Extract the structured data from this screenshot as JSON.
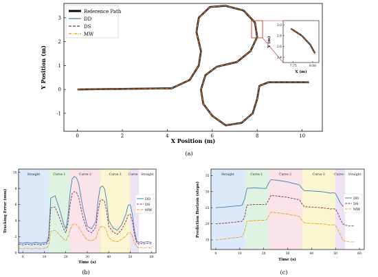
{
  "captions": {
    "a": "(a)",
    "b": "(b)",
    "c": "(c)"
  },
  "colors": {
    "reference": "#000000",
    "DD": "#3a7fb5",
    "DS": "#8b2252",
    "MW": "#f28c00"
  },
  "chart_data": [
    {
      "id": "a",
      "type": "line",
      "xlabel": "X Position (m)",
      "ylabel": "Y Position (m)",
      "xlim": [
        -0.6,
        10.9
      ],
      "ylim": [
        -1.75,
        3.6
      ],
      "xticks": [
        0,
        2,
        4,
        6,
        8,
        10
      ],
      "yticks": [
        -1,
        0,
        1,
        2,
        3
      ],
      "legend_position": "top-left",
      "series": [
        {
          "name": "Reference Path",
          "style": "solid-thick"
        },
        {
          "name": "DD",
          "style": "solid"
        },
        {
          "name": "DS",
          "style": "dashed"
        },
        {
          "name": "MW",
          "style": "dashdot"
        }
      ],
      "path": [
        [
          0,
          0
        ],
        [
          4.2,
          0.05
        ],
        [
          5.0,
          0.4
        ],
        [
          5.4,
          1.0
        ],
        [
          5.5,
          1.6
        ],
        [
          5.3,
          2.4
        ],
        [
          5.4,
          3.0
        ],
        [
          5.9,
          3.45
        ],
        [
          6.6,
          3.5
        ],
        [
          7.4,
          3.3
        ],
        [
          7.9,
          2.8
        ],
        [
          8.0,
          2.2
        ],
        [
          7.7,
          1.6
        ],
        [
          7.1,
          1.15
        ],
        [
          6.2,
          0.95
        ],
        [
          5.7,
          0.6
        ],
        [
          5.5,
          0.0
        ],
        [
          5.6,
          -0.6
        ],
        [
          6.0,
          -1.1
        ],
        [
          6.6,
          -1.5
        ],
        [
          7.3,
          -1.4
        ],
        [
          7.8,
          -1.0
        ],
        [
          8.0,
          -0.4
        ],
        [
          8.1,
          0.15
        ],
        [
          8.5,
          0.3
        ],
        [
          10.3,
          0.3
        ]
      ],
      "inset": {
        "xlabel": "X (m)",
        "ylabel": "Y (m)",
        "xlim": [
          7.62,
          8.08
        ],
        "ylim": [
          2.3,
          3.08
        ],
        "xticks": [
          7.75,
          8.0
        ],
        "xtick_labels": [
          "7.75",
          "8.00"
        ],
        "yticks": [
          2.4,
          2.6,
          2.8,
          3.0
        ],
        "path": [
          [
            7.72,
            2.93
          ],
          [
            7.86,
            2.8
          ],
          [
            7.97,
            2.63
          ],
          [
            8.03,
            2.47
          ]
        ]
      }
    },
    {
      "id": "b",
      "type": "line",
      "xlabel": "Time (s)",
      "ylabel": "Tracking Error (mm)",
      "xlim": [
        -2,
        62
      ],
      "ylim": [
        0,
        10.4
      ],
      "xticks": [
        0,
        10,
        20,
        30,
        40,
        50,
        60
      ],
      "yticks": [
        0,
        2,
        4,
        6,
        8,
        10
      ],
      "legend_position": "right",
      "regions": [
        {
          "name": "Straight",
          "start": -2,
          "end": 12,
          "color": "#dce9fb"
        },
        {
          "name": "Curve 1",
          "start": 12,
          "end": 22,
          "color": "#dff3e3"
        },
        {
          "name": "Curve 2",
          "start": 22,
          "end": 36,
          "color": "#fbe3ea"
        },
        {
          "name": "Curve 3",
          "start": 36,
          "end": 50,
          "color": "#faf6d2"
        },
        {
          "name": "Curve 4",
          "start": 50,
          "end": 54,
          "color": "#eee3f6"
        },
        {
          "name": "Straight",
          "start": 54,
          "end": 62,
          "color": "#ffffff"
        }
      ],
      "x": [
        -2,
        0,
        2,
        4,
        6,
        8,
        10,
        11,
        12,
        13,
        15,
        17,
        19,
        20,
        21,
        22,
        23,
        24,
        25,
        26,
        28,
        30,
        32,
        34,
        35,
        36,
        37,
        38,
        39,
        40,
        42,
        44,
        46,
        48,
        49,
        50,
        51,
        52,
        53,
        54,
        55,
        56,
        58,
        60
      ],
      "series": [
        {
          "name": "DD",
          "values": [
            1.3,
            1.2,
            1.3,
            1.2,
            1.3,
            1.2,
            1.3,
            1.3,
            2.0,
            6.8,
            7.1,
            5.5,
            3.6,
            3.0,
            4.5,
            7.5,
            9.2,
            9.5,
            9.3,
            8.6,
            5.5,
            3.3,
            3.0,
            3.9,
            6.5,
            8.1,
            8.3,
            8.0,
            6.5,
            4.0,
            3.1,
            2.8,
            3.5,
            4.8,
            5.9,
            6.0,
            4.8,
            2.7,
            1.5,
            1.3,
            1.4,
            1.3,
            1.4,
            1.3
          ]
        },
        {
          "name": "DS",
          "values": [
            1.1,
            1.0,
            1.1,
            1.0,
            1.1,
            1.0,
            1.1,
            1.1,
            1.6,
            5.6,
            5.7,
            4.4,
            3.0,
            2.5,
            3.7,
            6.0,
            7.4,
            7.6,
            7.5,
            6.9,
            4.4,
            2.8,
            2.5,
            3.2,
            5.2,
            6.5,
            6.6,
            6.4,
            5.2,
            3.3,
            2.6,
            2.3,
            2.9,
            3.9,
            4.7,
            4.8,
            3.9,
            2.2,
            1.3,
            1.1,
            1.2,
            1.1,
            1.2,
            1.1
          ]
        },
        {
          "name": "MW",
          "values": [
            0.6,
            0.5,
            0.6,
            0.5,
            0.6,
            0.5,
            0.6,
            0.6,
            0.9,
            2.7,
            2.8,
            2.3,
            1.7,
            1.5,
            2.0,
            2.9,
            3.5,
            3.6,
            3.5,
            3.2,
            2.3,
            1.6,
            1.5,
            1.8,
            2.7,
            3.2,
            3.3,
            3.2,
            2.7,
            1.9,
            1.5,
            1.4,
            1.7,
            2.1,
            2.5,
            2.5,
            2.1,
            1.3,
            0.8,
            0.6,
            0.7,
            0.6,
            0.7,
            0.6
          ]
        }
      ]
    },
    {
      "id": "c",
      "type": "line",
      "xlabel": "Time (s)",
      "ylabel": "Prediction Horizon (steps)",
      "xlim": [
        -2,
        62
      ],
      "ylim": [
        12,
        37
      ],
      "xticks": [
        0,
        10,
        20,
        30,
        40,
        50,
        60
      ],
      "yticks": [
        15,
        20,
        25,
        30,
        35
      ],
      "legend_position": "right",
      "regions": [
        {
          "name": "Straight",
          "start": -2,
          "end": 12,
          "color": "#dce9fb"
        },
        {
          "name": "Curve 1",
          "start": 12,
          "end": 22,
          "color": "#dff3e3"
        },
        {
          "name": "Curve 2",
          "start": 22,
          "end": 36,
          "color": "#fbe3ea"
        },
        {
          "name": "Curve 3",
          "start": 36,
          "end": 50,
          "color": "#faf6d2"
        },
        {
          "name": "Curve 4",
          "start": 50,
          "end": 54,
          "color": "#eee3f6"
        },
        {
          "name": "Straight",
          "start": 54,
          "end": 62,
          "color": "#ffffff"
        }
      ],
      "x": [
        0,
        4,
        8,
        10,
        11,
        12,
        13,
        16,
        20,
        21,
        22,
        23,
        26,
        30,
        32,
        34,
        35,
        36,
        37,
        40,
        44,
        46,
        48,
        49,
        50,
        51,
        52,
        53,
        54,
        55,
        56,
        58
      ],
      "series": [
        {
          "name": "DD",
          "values": [
            25.0,
            25.2,
            25.5,
            25.6,
            25.8,
            27.5,
            31.0,
            31.2,
            31.0,
            31.0,
            32.5,
            33.7,
            33.5,
            33.0,
            32.6,
            32.3,
            32.0,
            31.0,
            30.3,
            30.2,
            30.0,
            29.8,
            29.5,
            29.7,
            29.4,
            28.0,
            26.5,
            25.5,
            25.3,
            24.8,
            24.6,
            24.7
          ]
        },
        {
          "name": "DS",
          "values": [
            20.0,
            20.2,
            20.5,
            20.7,
            20.8,
            22.0,
            25.8,
            26.0,
            26.0,
            26.0,
            27.3,
            28.8,
            28.6,
            28.2,
            27.9,
            27.6,
            27.4,
            26.2,
            25.3,
            25.2,
            25.0,
            24.8,
            24.6,
            24.7,
            24.5,
            23.2,
            21.5,
            20.0,
            19.6,
            19.4,
            19.3,
            19.4
          ]
        },
        {
          "name": "MW",
          "values": [
            15.0,
            15.3,
            15.7,
            15.8,
            16.0,
            17.5,
            20.8,
            21.0,
            21.1,
            21.1,
            22.3,
            23.6,
            23.4,
            23.0,
            22.7,
            22.4,
            22.2,
            21.0,
            20.3,
            20.1,
            20.0,
            19.8,
            19.6,
            19.7,
            19.5,
            18.2,
            16.6,
            15.0,
            14.6,
            14.5,
            14.3,
            14.4
          ]
        }
      ]
    }
  ]
}
